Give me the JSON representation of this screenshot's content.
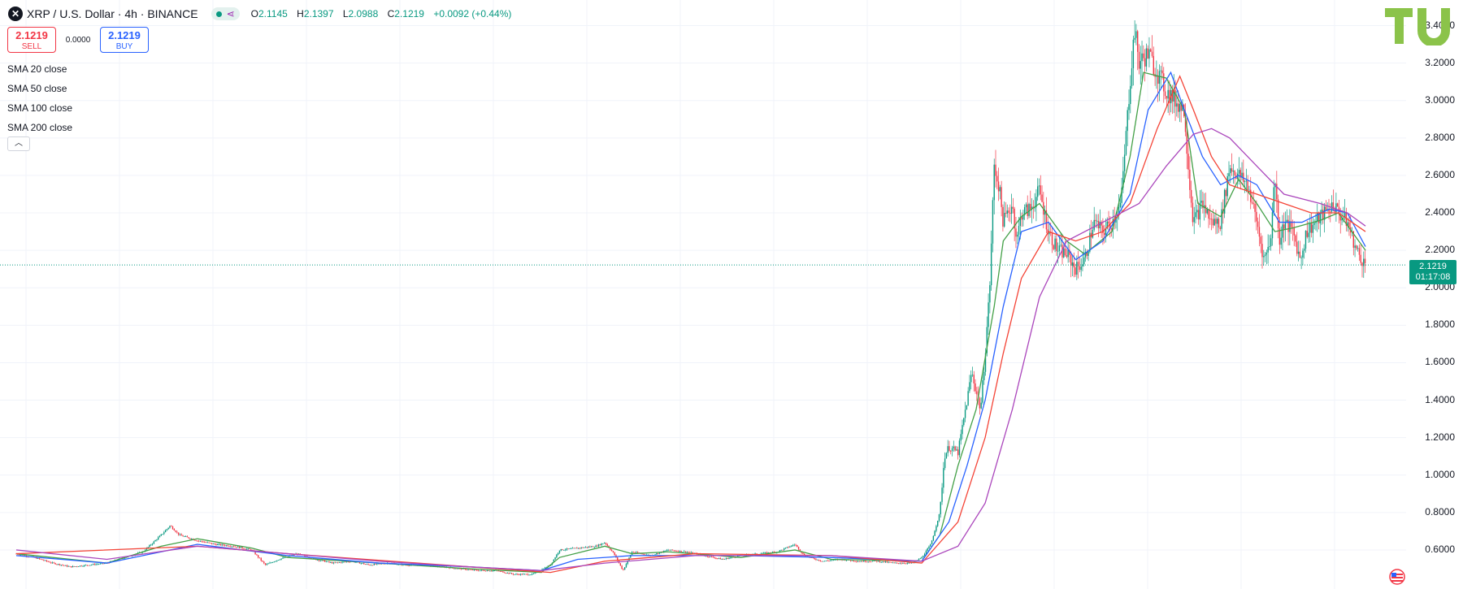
{
  "header": {
    "symbol_icon": "x-icon",
    "title": "XRP / U.S. Dollar · 4h · BINANCE",
    "open_label": "O",
    "open": "2.1145",
    "high_label": "H",
    "high": "2.1397",
    "low_label": "L",
    "low": "2.0988",
    "close_label": "C",
    "close": "2.1219",
    "change": "+0.0092 (+0.44%)"
  },
  "trade": {
    "sell_price": "2.1219",
    "sell_label": "SELL",
    "spread": "0.0000",
    "buy_price": "2.1219",
    "buy_label": "BUY"
  },
  "indicators": [
    "SMA 20 close",
    "SMA 50 close",
    "SMA 100 close",
    "SMA 200 close"
  ],
  "last_price": {
    "price": "2.1219",
    "countdown": "01:17:08",
    "value": 2.1219
  },
  "colors": {
    "up": "#089981",
    "down": "#f23645",
    "sma20": "#43a047",
    "sma50": "#2962ff",
    "sma100": "#f44336",
    "sma200": "#ab47bc",
    "grid": "#f0f3fa",
    "logo": "#8bc34a"
  },
  "chart_data": {
    "type": "line",
    "description_free": true,
    "y_range": [
      0.5,
      3.45
    ],
    "y_ticks": [
      "3.4000",
      "3.2000",
      "3.0000",
      "2.8000",
      "2.6000",
      "2.4000",
      "2.2000",
      "2.0000",
      "1.8000",
      "1.6000",
      "1.4000",
      "1.2000",
      "1.0000",
      "0.8000",
      "0.6000"
    ],
    "x_range": [
      0,
      1490
    ],
    "price_series": [
      [
        0,
        0.58
      ],
      [
        20,
        0.56
      ],
      [
        40,
        0.53
      ],
      [
        60,
        0.51
      ],
      [
        80,
        0.52
      ],
      [
        100,
        0.53
      ],
      [
        120,
        0.56
      ],
      [
        140,
        0.59
      ],
      [
        160,
        0.68
      ],
      [
        170,
        0.73
      ],
      [
        180,
        0.68
      ],
      [
        200,
        0.65
      ],
      [
        220,
        0.63
      ],
      [
        240,
        0.62
      ],
      [
        260,
        0.6
      ],
      [
        275,
        0.52
      ],
      [
        290,
        0.55
      ],
      [
        310,
        0.58
      ],
      [
        330,
        0.55
      ],
      [
        350,
        0.53
      ],
      [
        370,
        0.54
      ],
      [
        390,
        0.52
      ],
      [
        410,
        0.53
      ],
      [
        430,
        0.52
      ],
      [
        450,
        0.52
      ],
      [
        470,
        0.51
      ],
      [
        490,
        0.5
      ],
      [
        510,
        0.49
      ],
      [
        530,
        0.49
      ],
      [
        550,
        0.47
      ],
      [
        570,
        0.47
      ],
      [
        590,
        0.52
      ],
      [
        600,
        0.6
      ],
      [
        620,
        0.61
      ],
      [
        640,
        0.62
      ],
      [
        650,
        0.64
      ],
      [
        660,
        0.58
      ],
      [
        670,
        0.49
      ],
      [
        680,
        0.59
      ],
      [
        700,
        0.57
      ],
      [
        720,
        0.6
      ],
      [
        740,
        0.59
      ],
      [
        760,
        0.57
      ],
      [
        780,
        0.55
      ],
      [
        800,
        0.57
      ],
      [
        820,
        0.58
      ],
      [
        840,
        0.59
      ],
      [
        860,
        0.63
      ],
      [
        870,
        0.57
      ],
      [
        890,
        0.54
      ],
      [
        910,
        0.55
      ],
      [
        930,
        0.54
      ],
      [
        950,
        0.54
      ],
      [
        970,
        0.53
      ],
      [
        990,
        0.53
      ],
      [
        1000,
        0.56
      ],
      [
        1010,
        0.63
      ],
      [
        1020,
        0.8
      ],
      [
        1025,
        1.1
      ],
      [
        1030,
        1.15
      ],
      [
        1040,
        1.12
      ],
      [
        1050,
        1.4
      ],
      [
        1055,
        1.55
      ],
      [
        1060,
        1.45
      ],
      [
        1065,
        1.35
      ],
      [
        1070,
        1.65
      ],
      [
        1075,
        2.0
      ],
      [
        1080,
        2.65
      ],
      [
        1085,
        2.55
      ],
      [
        1090,
        2.35
      ],
      [
        1100,
        2.45
      ],
      [
        1105,
        2.25
      ],
      [
        1110,
        2.4
      ],
      [
        1120,
        2.42
      ],
      [
        1130,
        2.52
      ],
      [
        1140,
        2.3
      ],
      [
        1150,
        2.2
      ],
      [
        1160,
        2.18
      ],
      [
        1170,
        2.1
      ],
      [
        1180,
        2.15
      ],
      [
        1190,
        2.35
      ],
      [
        1200,
        2.3
      ],
      [
        1210,
        2.35
      ],
      [
        1220,
        2.45
      ],
      [
        1230,
        3.1
      ],
      [
        1235,
        3.38
      ],
      [
        1240,
        3.2
      ],
      [
        1250,
        3.25
      ],
      [
        1260,
        3.15
      ],
      [
        1270,
        3.05
      ],
      [
        1280,
        3.0
      ],
      [
        1290,
        2.95
      ],
      [
        1296,
        2.55
      ],
      [
        1300,
        2.35
      ],
      [
        1310,
        2.45
      ],
      [
        1320,
        2.35
      ],
      [
        1330,
        2.35
      ],
      [
        1340,
        2.65
      ],
      [
        1350,
        2.6
      ],
      [
        1360,
        2.55
      ],
      [
        1370,
        2.35
      ],
      [
        1378,
        2.15
      ],
      [
        1385,
        2.25
      ],
      [
        1390,
        2.6
      ],
      [
        1395,
        2.25
      ],
      [
        1400,
        2.35
      ],
      [
        1410,
        2.3
      ],
      [
        1418,
        2.15
      ],
      [
        1425,
        2.3
      ],
      [
        1435,
        2.35
      ],
      [
        1445,
        2.4
      ],
      [
        1455,
        2.45
      ],
      [
        1460,
        2.4
      ],
      [
        1470,
        2.35
      ],
      [
        1480,
        2.2
      ],
      [
        1490,
        2.12
      ]
    ],
    "series": [
      {
        "name": "SMA 20 close",
        "values": [
          [
            0,
            0.58
          ],
          [
            100,
            0.53
          ],
          [
            160,
            0.62
          ],
          [
            200,
            0.66
          ],
          [
            260,
            0.61
          ],
          [
            300,
            0.56
          ],
          [
            400,
            0.53
          ],
          [
            500,
            0.5
          ],
          [
            580,
            0.48
          ],
          [
            600,
            0.56
          ],
          [
            650,
            0.62
          ],
          [
            680,
            0.58
          ],
          [
            720,
            0.59
          ],
          [
            800,
            0.56
          ],
          [
            860,
            0.6
          ],
          [
            900,
            0.55
          ],
          [
            1000,
            0.54
          ],
          [
            1020,
            0.68
          ],
          [
            1040,
            1.05
          ],
          [
            1060,
            1.35
          ],
          [
            1080,
            1.9
          ],
          [
            1090,
            2.25
          ],
          [
            1110,
            2.38
          ],
          [
            1130,
            2.45
          ],
          [
            1160,
            2.25
          ],
          [
            1180,
            2.18
          ],
          [
            1210,
            2.3
          ],
          [
            1230,
            2.7
          ],
          [
            1245,
            3.15
          ],
          [
            1270,
            3.12
          ],
          [
            1290,
            2.95
          ],
          [
            1305,
            2.45
          ],
          [
            1330,
            2.38
          ],
          [
            1350,
            2.58
          ],
          [
            1370,
            2.45
          ],
          [
            1390,
            2.3
          ],
          [
            1410,
            2.32
          ],
          [
            1440,
            2.36
          ],
          [
            1460,
            2.4
          ],
          [
            1490,
            2.2
          ]
        ]
      },
      {
        "name": "SMA 50 close",
        "values": [
          [
            0,
            0.57
          ],
          [
            100,
            0.53
          ],
          [
            200,
            0.63
          ],
          [
            300,
            0.57
          ],
          [
            400,
            0.53
          ],
          [
            500,
            0.51
          ],
          [
            580,
            0.49
          ],
          [
            620,
            0.55
          ],
          [
            680,
            0.57
          ],
          [
            800,
            0.57
          ],
          [
            900,
            0.56
          ],
          [
            1000,
            0.54
          ],
          [
            1030,
            0.75
          ],
          [
            1050,
            1.05
          ],
          [
            1070,
            1.4
          ],
          [
            1090,
            1.9
          ],
          [
            1110,
            2.3
          ],
          [
            1140,
            2.35
          ],
          [
            1170,
            2.15
          ],
          [
            1200,
            2.25
          ],
          [
            1230,
            2.5
          ],
          [
            1250,
            2.95
          ],
          [
            1275,
            3.15
          ],
          [
            1290,
            2.95
          ],
          [
            1310,
            2.7
          ],
          [
            1330,
            2.55
          ],
          [
            1350,
            2.6
          ],
          [
            1370,
            2.55
          ],
          [
            1395,
            2.35
          ],
          [
            1420,
            2.35
          ],
          [
            1450,
            2.42
          ],
          [
            1470,
            2.4
          ],
          [
            1490,
            2.22
          ]
        ]
      },
      {
        "name": "SMA 100 close",
        "values": [
          [
            0,
            0.58
          ],
          [
            200,
            0.62
          ],
          [
            300,
            0.58
          ],
          [
            500,
            0.51
          ],
          [
            590,
            0.48
          ],
          [
            650,
            0.54
          ],
          [
            750,
            0.58
          ],
          [
            900,
            0.57
          ],
          [
            1000,
            0.53
          ],
          [
            1040,
            0.75
          ],
          [
            1070,
            1.2
          ],
          [
            1090,
            1.65
          ],
          [
            1110,
            2.05
          ],
          [
            1140,
            2.3
          ],
          [
            1170,
            2.25
          ],
          [
            1200,
            2.3
          ],
          [
            1230,
            2.45
          ],
          [
            1260,
            2.85
          ],
          [
            1285,
            3.13
          ],
          [
            1300,
            2.95
          ],
          [
            1320,
            2.7
          ],
          [
            1340,
            2.55
          ],
          [
            1370,
            2.5
          ],
          [
            1400,
            2.45
          ],
          [
            1430,
            2.4
          ],
          [
            1460,
            2.4
          ],
          [
            1490,
            2.3
          ]
        ]
      },
      {
        "name": "SMA 200 close",
        "values": [
          [
            0,
            0.6
          ],
          [
            100,
            0.55
          ],
          [
            200,
            0.62
          ],
          [
            300,
            0.58
          ],
          [
            400,
            0.54
          ],
          [
            500,
            0.51
          ],
          [
            580,
            0.49
          ],
          [
            650,
            0.53
          ],
          [
            750,
            0.57
          ],
          [
            900,
            0.57
          ],
          [
            1000,
            0.54
          ],
          [
            1040,
            0.62
          ],
          [
            1070,
            0.85
          ],
          [
            1100,
            1.35
          ],
          [
            1130,
            1.95
          ],
          [
            1160,
            2.25
          ],
          [
            1200,
            2.35
          ],
          [
            1240,
            2.45
          ],
          [
            1270,
            2.65
          ],
          [
            1300,
            2.82
          ],
          [
            1320,
            2.85
          ],
          [
            1340,
            2.8
          ],
          [
            1370,
            2.65
          ],
          [
            1400,
            2.5
          ],
          [
            1440,
            2.45
          ],
          [
            1470,
            2.4
          ],
          [
            1490,
            2.33
          ]
        ]
      }
    ]
  }
}
